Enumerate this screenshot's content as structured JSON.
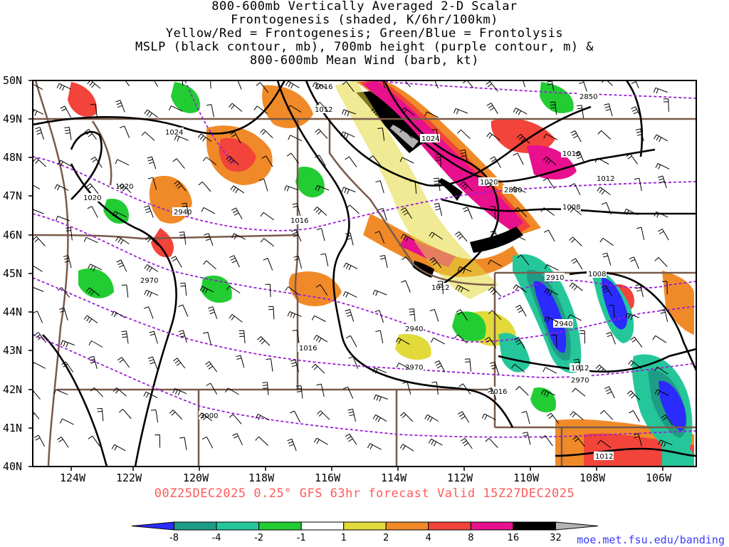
{
  "title_lines": [
    "800-600mb Vertically Averaged 2-D Scalar",
    "Frontogenesis (shaded, K/6hr/100km)",
    "Yellow/Red = Frontogenesis;  Green/Blue = Frontolysis",
    "MSLP (black contour, mb), 700mb height (purple contour, m) &",
    "800-600mb Mean Wind (barb, kt)"
  ],
  "lat_labels": [
    "50N",
    "49N",
    "48N",
    "47N",
    "46N",
    "45N",
    "44N",
    "43N",
    "42N",
    "41N",
    "40N"
  ],
  "lon_labels": [
    "124W",
    "122W",
    "120W",
    "118W",
    "116W",
    "114W",
    "112W",
    "110W",
    "108W",
    "106W"
  ],
  "valid_text": "00Z25DEC2025 0.25° GFS 63hr forecast Valid 15Z27DEC2025",
  "credit": "moe.met.fsu.edu/banding",
  "colorbar": {
    "ticks": [
      "-8",
      "-4",
      "-2",
      "-1",
      "1",
      "2",
      "4",
      "8",
      "16",
      "32"
    ],
    "colors": [
      "#2b2bff",
      "#1f9c86",
      "#25c79a",
      "#22cc33",
      "#ffffff",
      "#e2d93a",
      "#f08a28",
      "#f2443a",
      "#e8108c",
      "#000000",
      "#b4b4b4"
    ]
  },
  "mslp_labels": [
    "1016",
    "1012",
    "1024",
    "1020",
    "1020",
    "1016",
    "1024",
    "1016",
    "1020",
    "1012",
    "1008",
    "1012",
    "1008",
    "1016",
    "1012",
    "1016",
    "1012"
  ],
  "height_labels": [
    "2850",
    "2880",
    "2940",
    "2970",
    "2940",
    "2970",
    "2910",
    "2940",
    "2970",
    "3000"
  ],
  "colors": {
    "mslp": "#000000",
    "height": "#9b1fd6",
    "border": "#7a5a4a",
    "valid": "#ff5a5a",
    "credit": "#3a3aff"
  }
}
